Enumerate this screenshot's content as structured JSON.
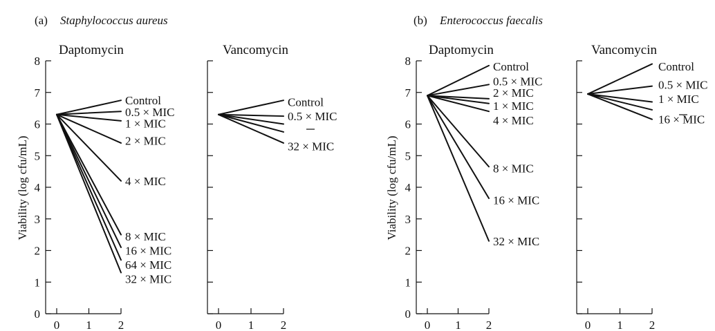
{
  "chart_data": [
    {
      "type": "line",
      "panel_label": "(a)",
      "organism": "Staphylococcus aureus",
      "title": "Daptomycin",
      "ylabel": "Viability (log cfu/mL)",
      "x_ticks": [
        0,
        1,
        2
      ],
      "y_ticks": [
        0,
        1,
        2,
        3,
        4,
        5,
        6,
        7,
        8
      ],
      "xlim": [
        0,
        2
      ],
      "ylim": [
        0,
        8
      ],
      "series": [
        {
          "name": "Control",
          "x": [
            0,
            2
          ],
          "y": [
            6.3,
            6.75
          ]
        },
        {
          "name": "0.5 × MIC",
          "x": [
            0,
            2
          ],
          "y": [
            6.3,
            6.4
          ]
        },
        {
          "name": "1 × MIC",
          "x": [
            0,
            2
          ],
          "y": [
            6.3,
            6.1
          ]
        },
        {
          "name": "2 × MIC",
          "x": [
            0,
            2
          ],
          "y": [
            6.3,
            5.4
          ]
        },
        {
          "name": "4 × MIC",
          "x": [
            0,
            2
          ],
          "y": [
            6.3,
            4.2
          ]
        },
        {
          "name": "8 × MIC",
          "x": [
            0,
            2
          ],
          "y": [
            6.3,
            2.5
          ]
        },
        {
          "name": "16 × MIC",
          "x": [
            0,
            2
          ],
          "y": [
            6.3,
            2.1
          ]
        },
        {
          "name": "64 × MIC",
          "x": [
            0,
            2
          ],
          "y": [
            6.3,
            1.7
          ]
        },
        {
          "name": "32 × MIC",
          "x": [
            0,
            2
          ],
          "y": [
            6.3,
            1.3
          ]
        }
      ]
    },
    {
      "type": "line",
      "title": "Vancomycin",
      "x_ticks": [
        0,
        1,
        2
      ],
      "xlim": [
        0,
        2
      ],
      "ylim": [
        0,
        8
      ],
      "series": [
        {
          "name": "Control",
          "x": [
            0,
            2
          ],
          "y": [
            6.3,
            6.75
          ]
        },
        {
          "name": "0.5 × MIC",
          "x": [
            0,
            2
          ],
          "y": [
            6.3,
            6.25
          ]
        },
        {
          "name": "",
          "x": [
            0,
            2
          ],
          "y": [
            6.3,
            6.0
          ]
        },
        {
          "name": "",
          "x": [
            0,
            2
          ],
          "y": [
            6.3,
            5.75
          ]
        },
        {
          "name": "32 × MIC",
          "x": [
            0,
            2
          ],
          "y": [
            6.3,
            5.4
          ]
        }
      ]
    },
    {
      "type": "line",
      "panel_label": "(b)",
      "organism": "Enterococcus faecalis",
      "title": "Daptomycin",
      "ylabel": "Viability (log cfu/mL)",
      "x_ticks": [
        0,
        1,
        2
      ],
      "y_ticks": [
        0,
        1,
        2,
        3,
        4,
        5,
        6,
        7,
        8
      ],
      "xlim": [
        0,
        2
      ],
      "ylim": [
        0,
        8
      ],
      "series": [
        {
          "name": "Control",
          "x": [
            0,
            2
          ],
          "y": [
            6.9,
            7.85
          ]
        },
        {
          "name": "0.5 × MIC",
          "x": [
            0,
            2
          ],
          "y": [
            6.9,
            7.25
          ]
        },
        {
          "name": "2 × MIC",
          "x": [
            0,
            2
          ],
          "y": [
            6.9,
            6.8
          ]
        },
        {
          "name": "1 × MIC",
          "x": [
            0,
            2
          ],
          "y": [
            6.9,
            6.65
          ]
        },
        {
          "name": "4 × MIC",
          "x": [
            0,
            2
          ],
          "y": [
            6.9,
            6.4
          ]
        },
        {
          "name": "8 × MIC",
          "x": [
            0,
            2
          ],
          "y": [
            6.9,
            4.65
          ]
        },
        {
          "name": "16 × MIC",
          "x": [
            0,
            2
          ],
          "y": [
            6.9,
            3.65
          ]
        },
        {
          "name": "32 × MIC",
          "x": [
            0,
            2
          ],
          "y": [
            6.9,
            2.3
          ]
        }
      ]
    },
    {
      "type": "line",
      "title": "Vancomycin",
      "x_ticks": [
        0,
        1,
        2
      ],
      "xlim": [
        0,
        2
      ],
      "ylim": [
        0,
        8
      ],
      "series": [
        {
          "name": "Control",
          "x": [
            0,
            2
          ],
          "y": [
            6.95,
            7.9
          ]
        },
        {
          "name": "0.5 × MIC",
          "x": [
            0,
            2
          ],
          "y": [
            6.95,
            7.2
          ]
        },
        {
          "name": "1 × MIC",
          "x": [
            0,
            2
          ],
          "y": [
            6.95,
            6.7
          ]
        },
        {
          "name": "",
          "x": [
            0,
            2
          ],
          "y": [
            6.95,
            6.45
          ]
        },
        {
          "name": "16 × MIC",
          "x": [
            0,
            2
          ],
          "y": [
            6.95,
            6.15
          ]
        }
      ]
    }
  ]
}
